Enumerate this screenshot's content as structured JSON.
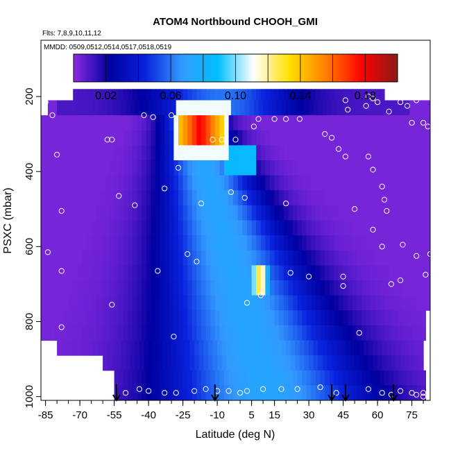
{
  "chart_data": {
    "type": "heatmap",
    "title": "ATOM4 Northbound CHOOH_GMI",
    "flights_label": "Flts: 7,8,9,10,11,12",
    "dates_label": "MMDD: 0509,0512,0514,0517,0518,0519",
    "xlabel": "Latitude (deg N)",
    "ylabel": "PSXC (mbar)",
    "x_ticks": [
      -85,
      -70,
      -55,
      -40,
      -25,
      -10,
      5,
      15,
      30,
      45,
      60,
      75
    ],
    "x_range": [
      -87,
      83
    ],
    "y_ticks": [
      200,
      400,
      600,
      800,
      1000
    ],
    "y_range": [
      1010,
      50
    ],
    "y_inverted": true,
    "colorbar": {
      "range": [
        0.0,
        0.2
      ],
      "ticks": [
        0.02,
        0.06,
        0.1,
        0.14,
        0.18
      ],
      "tick_labels": [
        "0.02",
        "0.06",
        "0.10",
        "0.14",
        "0.18"
      ],
      "colors": [
        "#8a2be2",
        "#0000a0",
        "#0a22dd",
        "#3399ff",
        "#00bfff",
        "#ffffff",
        "#ffe000",
        "#ff8000",
        "#ff0000",
        "#8b1a1a"
      ]
    },
    "pressure_levels": [
      190,
      230,
      270,
      310,
      350,
      390,
      430,
      470,
      510,
      550,
      590,
      630,
      670,
      710,
      750,
      790,
      830,
      870,
      910,
      950,
      990
    ],
    "structure": {
      "background": 0.003,
      "plume_core": {
        "lat": 12,
        "value": 0.07
      },
      "upper_band": {
        "p_top": 180,
        "p_bottom": 220,
        "value": 0.05
      },
      "upper_max": {
        "lat_range": [
          -27,
          -8
        ],
        "p_range": [
          250,
          330
        ],
        "value": 0.18
      },
      "lower_max": {
        "lat_range": [
          5,
          12
        ],
        "p_range": [
          640,
          720
        ],
        "value": 0.15
      }
    },
    "observations_note": "white circles mark in-situ samples",
    "observation_points": [
      [
        -85,
        215
      ],
      [
        -82,
        250
      ],
      [
        -80,
        355
      ],
      [
        -78,
        505
      ],
      [
        -84,
        615
      ],
      [
        -78,
        665
      ],
      [
        -78,
        815
      ],
      [
        -62,
        900
      ],
      [
        -62,
        950
      ],
      [
        -50,
        990
      ],
      [
        -56,
        755
      ],
      [
        -58,
        315
      ],
      [
        -56,
        315
      ],
      [
        -53,
        465
      ],
      [
        -46,
        490
      ],
      [
        -42,
        250
      ],
      [
        -38,
        255
      ],
      [
        -30,
        250
      ],
      [
        -33,
        445
      ],
      [
        -36,
        665
      ],
      [
        -29,
        840
      ],
      [
        -27,
        390
      ],
      [
        -23,
        620
      ],
      [
        -19,
        640
      ],
      [
        -17,
        485
      ],
      [
        -12,
        315
      ],
      [
        -8,
        315
      ],
      [
        -4,
        455
      ],
      [
        -2,
        315
      ],
      [
        2,
        470
      ],
      [
        3,
        750
      ],
      [
        6,
        280
      ],
      [
        8,
        260
      ],
      [
        9,
        730
      ],
      [
        15,
        260
      ],
      [
        20,
        260
      ],
      [
        20,
        485
      ],
      [
        26,
        260
      ],
      [
        22,
        670
      ],
      [
        30,
        680
      ],
      [
        35,
        975
      ],
      [
        42,
        990
      ],
      [
        45,
        680
      ],
      [
        45,
        705
      ],
      [
        46,
        360
      ],
      [
        50,
        500
      ],
      [
        52,
        830
      ],
      [
        56,
        360
      ],
      [
        58,
        395
      ],
      [
        58,
        555
      ],
      [
        62,
        440
      ],
      [
        63,
        475
      ],
      [
        64,
        505
      ],
      [
        62,
        600
      ],
      [
        66,
        700
      ],
      [
        70,
        690
      ],
      [
        71,
        595
      ],
      [
        77,
        625
      ],
      [
        80,
        270
      ],
      [
        82,
        280
      ],
      [
        83,
        620
      ],
      [
        81,
        675
      ],
      [
        80,
        990
      ],
      [
        56,
        980
      ],
      [
        62,
        990
      ],
      [
        66,
        995
      ],
      [
        70,
        985
      ],
      [
        75,
        990
      ],
      [
        77,
        995
      ],
      [
        80,
        1000
      ],
      [
        55,
        225
      ],
      [
        60,
        215
      ],
      [
        65,
        240
      ],
      [
        70,
        215
      ],
      [
        73,
        225
      ],
      [
        75,
        270
      ],
      [
        77,
        210
      ],
      [
        46,
        210
      ],
      [
        56,
        200
      ],
      [
        58,
        205
      ],
      [
        47,
        235
      ],
      [
        37,
        300
      ],
      [
        40,
        310
      ],
      [
        43,
        340
      ],
      [
        25,
        980
      ],
      [
        18,
        980
      ],
      [
        10,
        980
      ],
      [
        3,
        985
      ],
      [
        0,
        990
      ],
      [
        -5,
        985
      ],
      [
        -10,
        985
      ],
      [
        -15,
        980
      ],
      [
        -20,
        985
      ],
      [
        -28,
        990
      ],
      [
        -33,
        990
      ],
      [
        -40,
        985
      ],
      [
        -44,
        980
      ]
    ],
    "arrows_lat": [
      -54,
      -11,
      40,
      46,
      67
    ]
  }
}
